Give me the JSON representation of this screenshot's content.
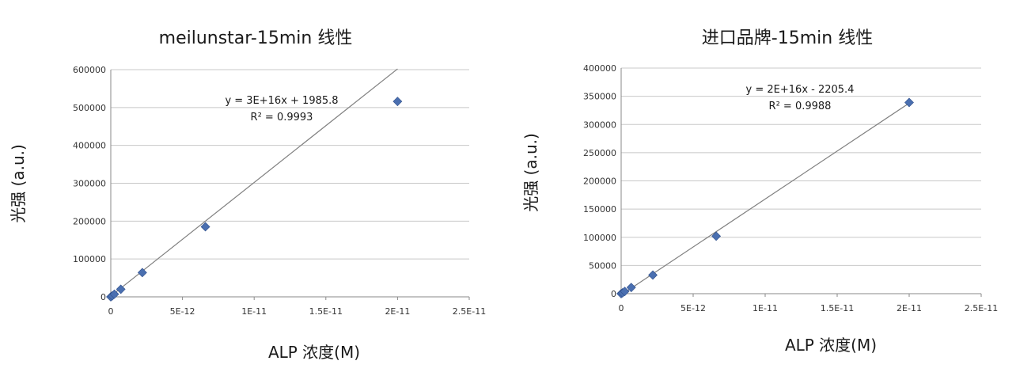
{
  "chart_data": [
    {
      "type": "scatter",
      "title": "meilunstar-15min 线性",
      "xlabel": "ALP 浓度(M)",
      "ylabel": "光强 (a.u.)",
      "xlim": [
        0,
        2.5e-11
      ],
      "ylim": [
        0,
        600000
      ],
      "xticks": [
        "0",
        "5E-12",
        "1E-11",
        "1.5E-11",
        "2E-11",
        "2.5E-11"
      ],
      "yticks": [
        "0",
        "100000",
        "200000",
        "300000",
        "400000",
        "500000",
        "600000"
      ],
      "ytick_values": [
        0,
        100000,
        200000,
        300000,
        400000,
        500000,
        600000
      ],
      "xtick_values": [
        0,
        5e-12,
        1e-11,
        1.5e-11,
        2e-11,
        2.5e-11
      ],
      "grid": true,
      "marker_color": "#4a6fb0",
      "trendline_color": "#7f7f7f",
      "points": [
        {
          "x": 0,
          "y": 0
        },
        {
          "x": 1e-13,
          "y": 2500
        },
        {
          "x": 2.5e-13,
          "y": 7000
        },
        {
          "x": 7e-13,
          "y": 20000
        },
        {
          "x": 2.2e-12,
          "y": 64000
        },
        {
          "x": 6.6e-12,
          "y": 185000
        },
        {
          "x": 2e-11,
          "y": 516000
        }
      ],
      "trendline": {
        "slope": 3e+16,
        "intercept": 1985.8,
        "x_range": [
          0,
          2e-11
        ]
      },
      "equation": "y = 3E+16x + 1985.8",
      "r_squared": "R² = 0.9993"
    },
    {
      "type": "scatter",
      "title": "进口品牌-15min 线性",
      "xlabel": "ALP 浓度(M)",
      "ylabel": "光强 (a.u.)",
      "xlim": [
        0,
        2.5e-11
      ],
      "ylim": [
        0,
        400000
      ],
      "xticks": [
        "0",
        "5E-12",
        "1E-11",
        "1.5E-11",
        "2E-11",
        "2.5E-11"
      ],
      "yticks": [
        "0",
        "50000",
        "100000",
        "150000",
        "200000",
        "250000",
        "300000",
        "350000",
        "400000"
      ],
      "ytick_values": [
        0,
        50000,
        100000,
        150000,
        200000,
        250000,
        300000,
        350000,
        400000
      ],
      "xtick_values": [
        0,
        5e-12,
        1e-11,
        1.5e-11,
        2e-11,
        2.5e-11
      ],
      "grid": true,
      "marker_color": "#4a6fb0",
      "trendline_color": "#7f7f7f",
      "points": [
        {
          "x": 0,
          "y": 0
        },
        {
          "x": 1e-13,
          "y": 1500
        },
        {
          "x": 2.5e-13,
          "y": 4000
        },
        {
          "x": 7e-13,
          "y": 11000
        },
        {
          "x": 2.2e-12,
          "y": 33000
        },
        {
          "x": 6.6e-12,
          "y": 102000
        },
        {
          "x": 2e-11,
          "y": 339000
        }
      ],
      "trendline": {
        "slope": 1.7e+16,
        "intercept": -2205.4,
        "x_range": [
          1.3e-13,
          2e-11
        ]
      },
      "equation": "y = 2E+16x - 2205.4",
      "r_squared": "R² = 0.9988"
    }
  ]
}
